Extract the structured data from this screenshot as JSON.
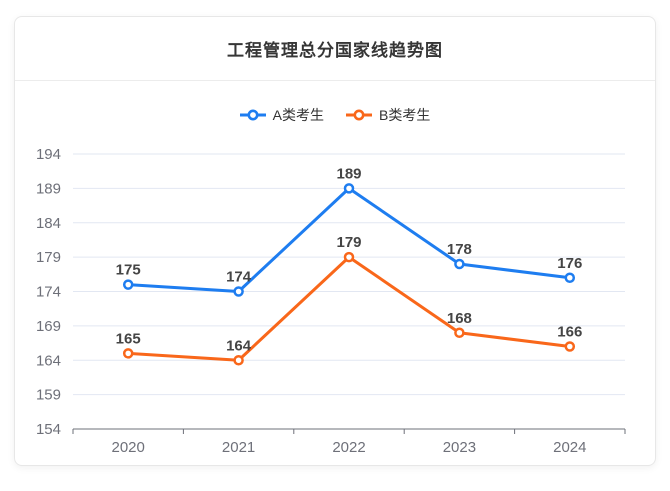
{
  "card": {
    "title": "工程管理总分国家线趋势图"
  },
  "chart_data": {
    "type": "line",
    "title": "工程管理总分国家线趋势图",
    "categories": [
      "2020",
      "2021",
      "2022",
      "2023",
      "2024"
    ],
    "series": [
      {
        "name": "A类考生",
        "color": "#1E7DF0",
        "values": [
          175,
          174,
          189,
          178,
          176
        ]
      },
      {
        "name": "B类考生",
        "color": "#F9671A",
        "values": [
          165,
          164,
          179,
          168,
          166
        ]
      }
    ],
    "ylim": [
      154,
      194
    ],
    "ytick_step": 5,
    "ytick_labels": [
      "154",
      "159",
      "164",
      "169",
      "174",
      "179",
      "184",
      "189",
      "194"
    ],
    "grid": true,
    "legend_position": "top",
    "data_labels": true,
    "colors": {
      "gridline": "#e2e7f2",
      "axis_line": "#6e7079",
      "tick_label": "#6e7079",
      "data_label": "#454545",
      "legend_text": "#333333",
      "marker_fill": "#ffffff"
    }
  }
}
